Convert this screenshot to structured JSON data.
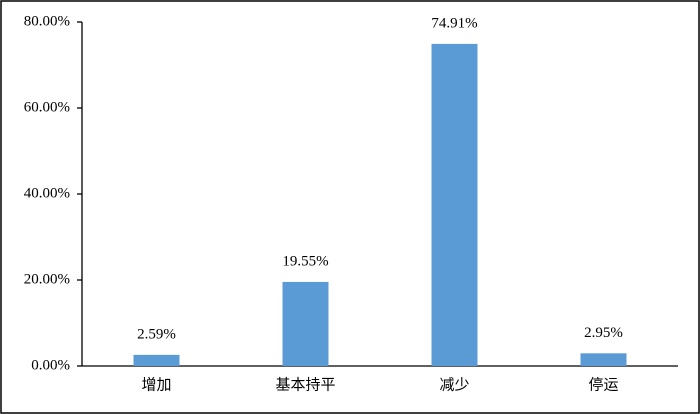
{
  "chart_data": {
    "type": "bar",
    "categories": [
      "增加",
      "基本持平",
      "减少",
      "停运"
    ],
    "values": [
      2.59,
      19.55,
      74.91,
      2.95
    ],
    "value_labels": [
      "2.59%",
      "19.55%",
      "74.91%",
      "2.95%"
    ],
    "color": "#5b9bd5",
    "ylim": [
      0,
      80
    ],
    "yticks": [
      {
        "value": 0,
        "label": "0.00%"
      },
      {
        "value": 20,
        "label": "20.00%"
      },
      {
        "value": 40,
        "label": "40.00%"
      },
      {
        "value": 60,
        "label": "60.00%"
      },
      {
        "value": 80,
        "label": "80.00%"
      }
    ],
    "grid": false
  }
}
